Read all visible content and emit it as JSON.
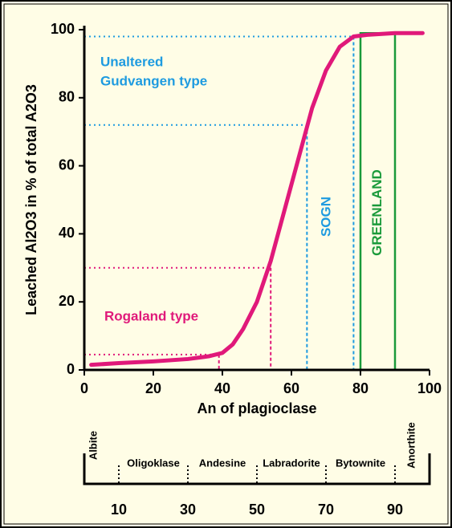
{
  "chart_data": {
    "type": "line",
    "xlabel": "An of plagioclase",
    "ylabel": "Leached Al2O3 in % of total A2O3",
    "xlim": [
      0,
      100
    ],
    "ylim": [
      0,
      100
    ],
    "xticks": [
      0,
      20,
      40,
      60,
      80,
      100
    ],
    "yticks": [
      0,
      20,
      40,
      60,
      80,
      100
    ],
    "series": [
      {
        "color": "#e0197a",
        "x": [
          2,
          10,
          20,
          30,
          36,
          40,
          43,
          46,
          50,
          54,
          58,
          62,
          66,
          70,
          74,
          78,
          82,
          90,
          98
        ],
        "values": [
          1.5,
          2,
          2.5,
          3.2,
          4,
          5,
          7.5,
          12,
          20,
          32,
          47,
          62,
          77,
          88,
          95,
          98,
          98.5,
          99,
          99
        ]
      }
    ],
    "reference_lines": [
      {
        "x": 39,
        "y": 4.5,
        "color": "#e0197a"
      },
      {
        "x": 54,
        "y": 30,
        "color": "#e0197a"
      },
      {
        "x": 64.5,
        "y": 72,
        "color": "#1e9be0"
      },
      {
        "x": 78,
        "y": 98,
        "color": "#1e9be0"
      }
    ],
    "box": {
      "label": "GREENLAND",
      "x": [
        80,
        90
      ],
      "y": [
        0,
        99
      ],
      "color": "#1a9a3a"
    },
    "annotations": [
      {
        "text": "Unaltered",
        "color": "#1e9be0"
      },
      {
        "text": "Gudvangen type",
        "color": "#1e9be0"
      },
      {
        "text": "Rogaland type",
        "color": "#e0197a"
      },
      {
        "text": "SOGN",
        "color": "#1e9be0"
      }
    ],
    "scale": {
      "names": [
        "Albite",
        "Oligoklase",
        "Andesine",
        "Labradorite",
        "Bytownite",
        "Anorthite"
      ],
      "ticks": [
        10,
        30,
        50,
        70,
        90
      ]
    }
  }
}
